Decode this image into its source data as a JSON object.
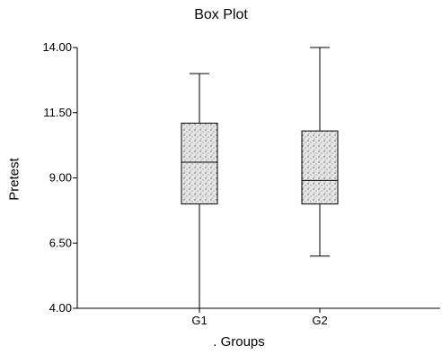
{
  "chart_data": {
    "type": "box",
    "title": "Box Plot",
    "xlabel": ". Groups",
    "ylabel": "Pretest",
    "ylim": [
      4.0,
      14.0
    ],
    "yticks": [
      "4.00",
      "6.50",
      "9.00",
      "11.50",
      "14.00"
    ],
    "categories": [
      "G1",
      "G2"
    ],
    "boxes": [
      {
        "name": "G1",
        "min": 4.0,
        "q1": 8.0,
        "median": 9.6,
        "q3": 11.1,
        "max": 13.0
      },
      {
        "name": "G2",
        "min": 6.0,
        "q1": 8.0,
        "median": 8.9,
        "q3": 10.8,
        "max": 14.0
      }
    ],
    "grid": false,
    "legend": "none"
  }
}
